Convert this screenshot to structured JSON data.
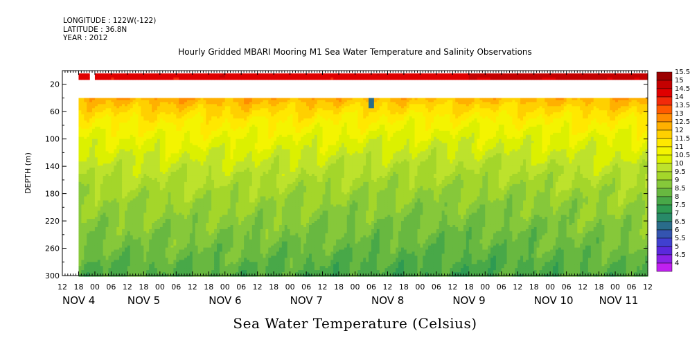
{
  "meta_lines": [
    "LONGITUDE : 122W(-122)",
    "LATITUDE : 36.8N",
    "YEAR : 2012"
  ],
  "chart_data": {
    "type": "heatmap",
    "title": "Hourly Gridded MBARI Mooring M1 Sea Water Temperature and Salinity Observations",
    "footer_label": "Sea Water Temperature (Celsius)",
    "ylabel": "DEPTH (m)",
    "ylim": [
      300,
      0
    ],
    "y_ticks": [
      20,
      60,
      100,
      140,
      180,
      220,
      260,
      300
    ],
    "x_range_hours": [
      0,
      216
    ],
    "x_hour_ticks": [
      "12",
      "18",
      "00",
      "06",
      "12",
      "18",
      "00",
      "06",
      "12",
      "18",
      "00",
      "06",
      "12",
      "18",
      "00",
      "06",
      "12",
      "18",
      "00",
      "06",
      "12",
      "18",
      "00",
      "06",
      "12",
      "18",
      "00",
      "06",
      "12",
      "18",
      "00",
      "06",
      "12",
      "18",
      "00",
      "06",
      "12"
    ],
    "date_labels": [
      {
        "label": "NOV  4",
        "hour": 0
      },
      {
        "label": "NOV  5",
        "hour": 24
      },
      {
        "label": "NOV  6",
        "hour": 54
      },
      {
        "label": "NOV  7",
        "hour": 84
      },
      {
        "label": "NOV  8",
        "hour": 114
      },
      {
        "label": "NOV  9",
        "hour": 144
      },
      {
        "label": "NOV 10",
        "hour": 174
      },
      {
        "label": "NOV 11",
        "hour": 198
      }
    ],
    "data_start_hour": 6,
    "surface_gaps_hours": [
      [
        10,
        12.5
      ]
    ],
    "no_data_depth_band": [
      13,
      39
    ],
    "colorbar": {
      "levels": [
        "15.5",
        "15",
        "14.5",
        "14",
        "13.5",
        "13",
        "12.5",
        "12",
        "11.5",
        "11",
        "10.5",
        "10",
        "9.5",
        "9",
        "8.5",
        "8",
        "7.5",
        "7",
        "6.5",
        "6",
        "5.5",
        "5",
        "4.5",
        "4"
      ],
      "colors": [
        "#9b0000",
        "#c40000",
        "#e00000",
        "#f22a0a",
        "#ff5a00",
        "#ff8c00",
        "#ffb000",
        "#ffd000",
        "#ffe800",
        "#f4f400",
        "#dcf000",
        "#bde22c",
        "#a4d62a",
        "#86c83a",
        "#68b840",
        "#48a848",
        "#2e9a52",
        "#288a68",
        "#2a6c8a",
        "#3454b0",
        "#4040d0",
        "#5a28dc",
        "#8a22e6",
        "#c020f0"
      ]
    },
    "depth_profile": [
      {
        "depth": 10,
        "temp": 14.3
      },
      {
        "depth": 39,
        "temp": 12.3
      },
      {
        "depth": 50,
        "temp": 11.8
      },
      {
        "depth": 70,
        "temp": 11.1
      },
      {
        "depth": 100,
        "temp": 10.4
      },
      {
        "depth": 140,
        "temp": 9.7
      },
      {
        "depth": 180,
        "temp": 9.1
      },
      {
        "depth": 220,
        "temp": 8.7
      },
      {
        "depth": 260,
        "temp": 8.3
      },
      {
        "depth": 300,
        "temp": 7.8
      }
    ],
    "annotations": [
      {
        "type": "cold-spike",
        "hour": 114,
        "depth_range": [
          39,
          55
        ],
        "temp": 6.0
      }
    ]
  }
}
